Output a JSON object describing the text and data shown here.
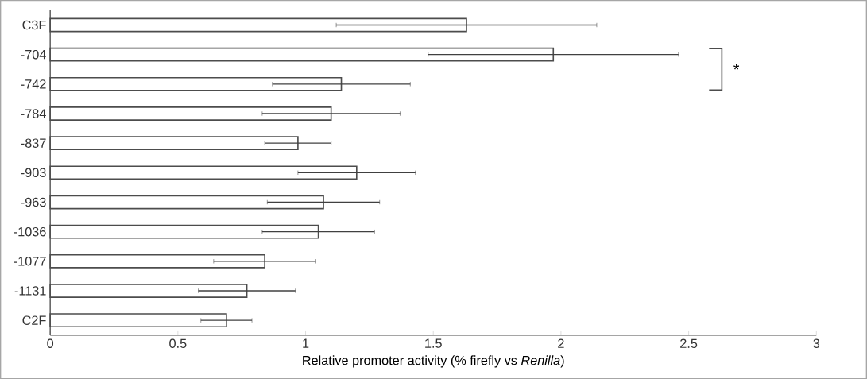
{
  "chart_data": {
    "type": "bar",
    "orientation": "horizontal",
    "xlabel": "Relative promoter activity (% firefly vs *Renilla*)",
    "categories": [
      "C3F",
      "-704",
      "-742",
      "-784",
      "-837",
      "-903",
      "-963",
      "-1036",
      "-1077",
      "-1131",
      "C2F"
    ],
    "values": [
      1.63,
      1.97,
      1.14,
      1.1,
      0.97,
      1.2,
      1.07,
      1.05,
      0.84,
      0.77,
      0.69
    ],
    "errors": [
      0.51,
      0.49,
      0.27,
      0.27,
      0.13,
      0.23,
      0.22,
      0.22,
      0.2,
      0.19,
      0.1
    ],
    "color": "#ffffff",
    "xlim": [
      0,
      3
    ],
    "xticks": [
      0,
      0.5,
      1,
      1.5,
      2,
      2.5,
      3
    ],
    "annotations": [
      "*"
    ]
  }
}
